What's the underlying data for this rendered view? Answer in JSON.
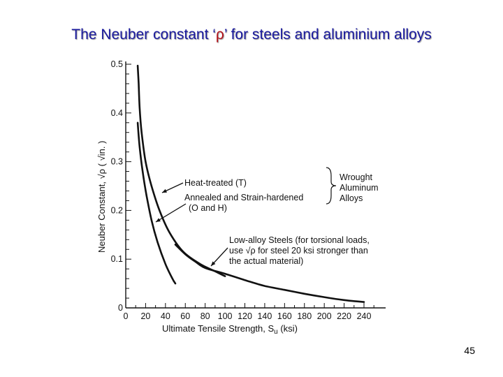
{
  "slide": {
    "title_before": "The Neuber constant ‘",
    "title_rho": "ρ",
    "title_after": "’ for steels and aluminium alloys",
    "page_number": "45"
  },
  "colors": {
    "title": "#1a1a9e",
    "rho": "#b3121a",
    "ink": "#111111"
  },
  "chart_data": {
    "type": "line",
    "xlabel_main": "Ultimate Tensile Strength, S",
    "xlabel_sub": "u",
    "xlabel_unit": " (ksi)",
    "ylabel_main": "Neuber Constant, ",
    "ylabel_sqrt": "√ρ",
    "ylabel_unit": " ( √in. )",
    "xlim": [
      0,
      250
    ],
    "ylim": [
      0,
      0.5
    ],
    "x_ticks": [
      0,
      20,
      40,
      60,
      80,
      100,
      120,
      140,
      160,
      180,
      200,
      220,
      240
    ],
    "y_ticks": [
      "0",
      "0.1",
      "0.2",
      "0.3",
      "0.4",
      "0.5"
    ],
    "y_tick_values": [
      0,
      0.1,
      0.2,
      0.3,
      0.4,
      0.5
    ],
    "grid": false,
    "series": [
      {
        "key": "heat_treated",
        "points": [
          [
            12,
            0.497
          ],
          [
            13,
            0.46
          ],
          [
            14,
            0.41
          ],
          [
            16,
            0.36
          ],
          [
            20,
            0.3
          ],
          [
            26,
            0.25
          ],
          [
            34,
            0.2
          ],
          [
            44,
            0.155
          ],
          [
            58,
            0.115
          ],
          [
            75,
            0.09
          ],
          [
            90,
            0.075
          ],
          [
            100,
            0.065
          ]
        ]
      },
      {
        "key": "annealed",
        "points": [
          [
            12,
            0.38
          ],
          [
            14,
            0.33
          ],
          [
            17,
            0.28
          ],
          [
            21,
            0.23
          ],
          [
            26,
            0.18
          ],
          [
            32,
            0.135
          ],
          [
            40,
            0.09
          ],
          [
            47,
            0.06
          ],
          [
            50,
            0.05
          ]
        ]
      },
      {
        "key": "low_alloy_steel",
        "points": [
          [
            50,
            0.13
          ],
          [
            60,
            0.11
          ],
          [
            70,
            0.095
          ],
          [
            80,
            0.082
          ],
          [
            100,
            0.07
          ],
          [
            120,
            0.057
          ],
          [
            140,
            0.045
          ],
          [
            160,
            0.037
          ],
          [
            180,
            0.029
          ],
          [
            200,
            0.022
          ],
          [
            220,
            0.016
          ],
          [
            240,
            0.012
          ]
        ]
      }
    ],
    "annotations": {
      "heat_treated_label": "Heat-treated (T)",
      "annealed_label_1": "Annealed and Strain-hardened",
      "annealed_label_2": "(O and H)",
      "group_label_1": "Wrought",
      "group_label_2": "Aluminum",
      "group_label_3": "Alloys",
      "steel_label_1": "Low-alloy Steels (for torsional loads,",
      "steel_label_2a": "use ",
      "steel_label_2sqrt": "√ρ",
      "steel_label_2b": " for steel 20 ksi stronger than",
      "steel_label_3": "the actual material)"
    }
  }
}
